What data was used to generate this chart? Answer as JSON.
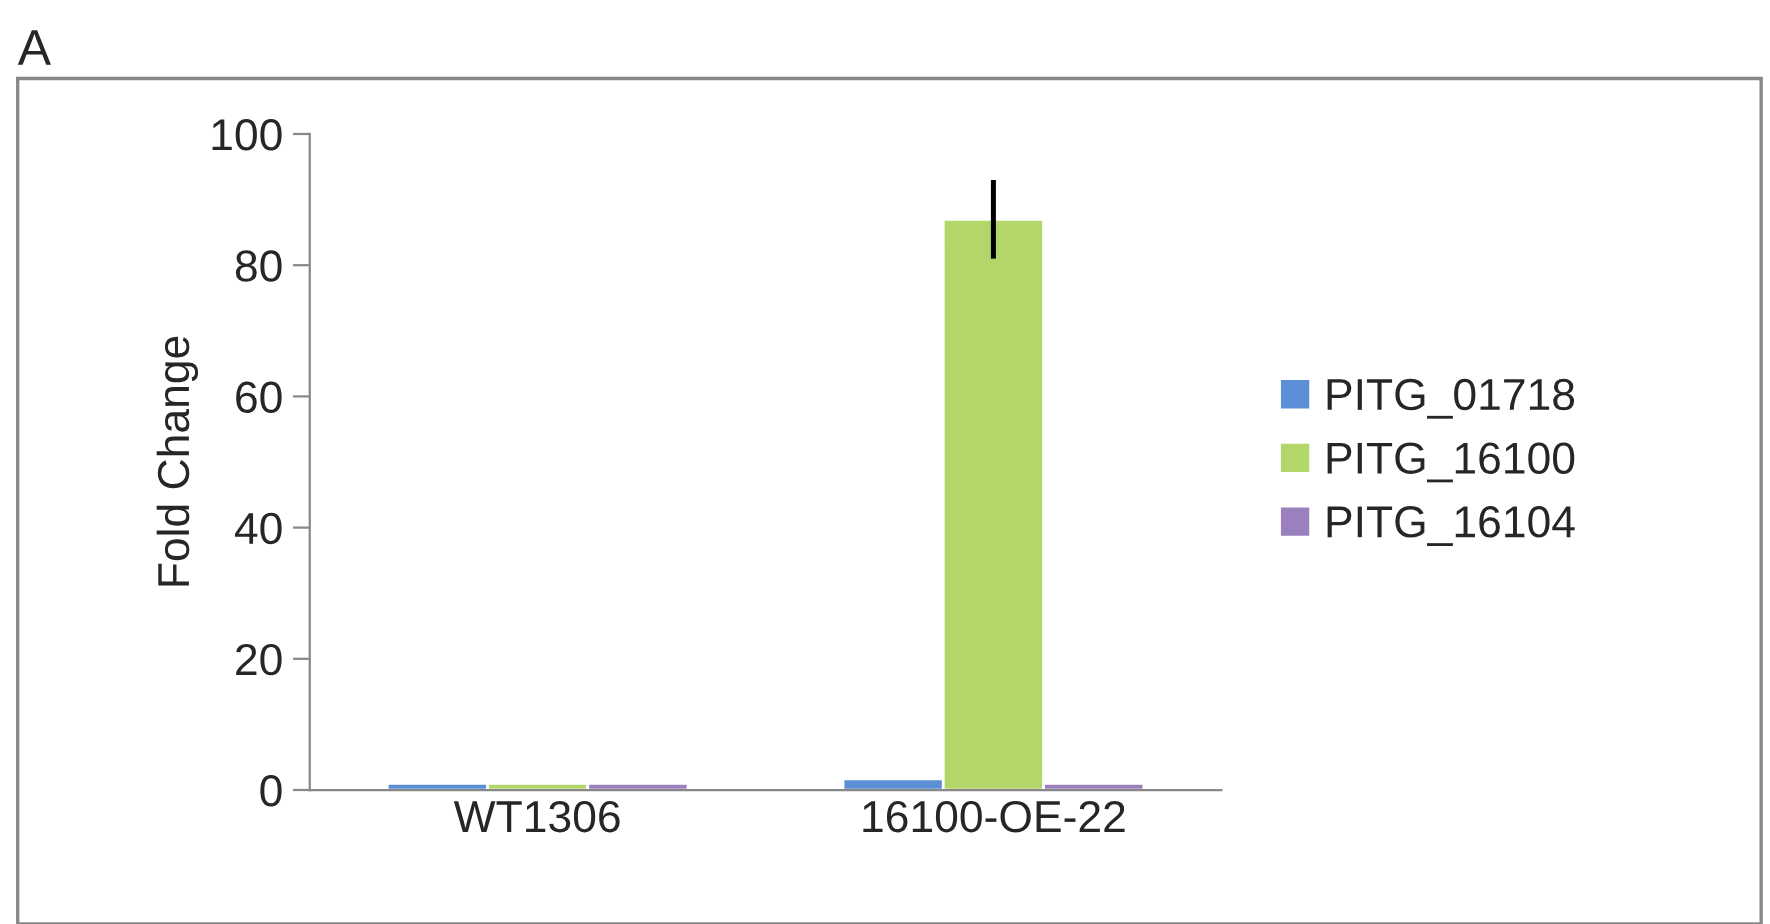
{
  "chart_data": {
    "type": "bar",
    "title": "A",
    "ylabel": "Fold Change",
    "categories": [
      "WT1306",
      "16100-OE-22"
    ],
    "series": [
      {
        "name": "PITG_01718",
        "color": "#5b8fd6",
        "values": [
          1,
          1.7
        ],
        "errors": [
          null,
          null
        ]
      },
      {
        "name": "PITG_16100",
        "color": "#b3d66a",
        "values": [
          1,
          87
        ],
        "errors": [
          null,
          6
        ]
      },
      {
        "name": "PITG_16104",
        "color": "#9a80bd",
        "values": [
          1,
          1
        ],
        "errors": [
          null,
          null
        ]
      }
    ],
    "ylim": [
      0,
      100
    ],
    "yticks": [
      0,
      20,
      40,
      60,
      80,
      100
    ],
    "grid": false,
    "legend": "right"
  }
}
